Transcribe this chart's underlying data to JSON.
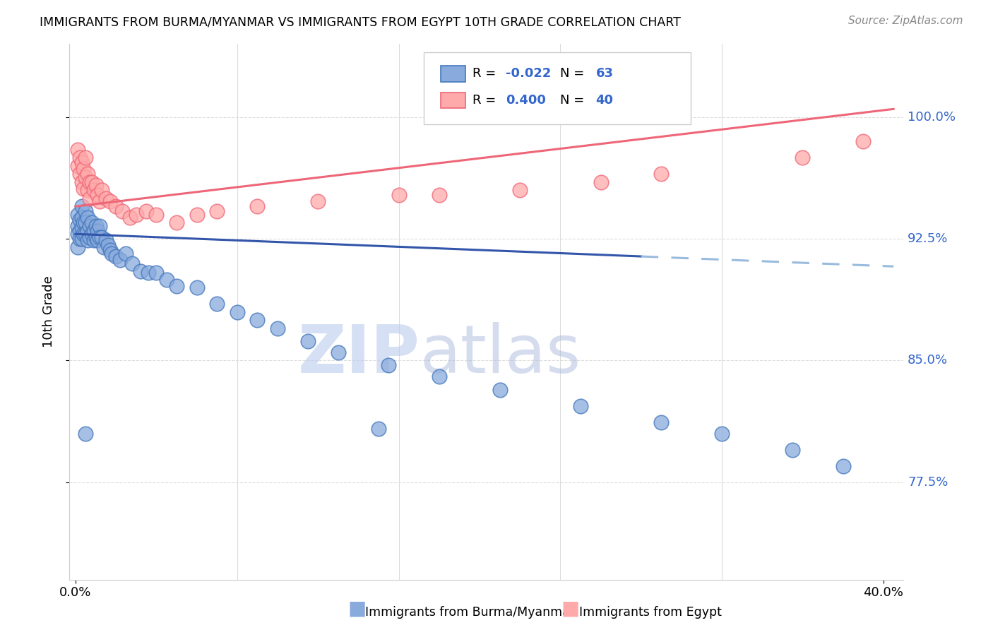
{
  "title": "IMMIGRANTS FROM BURMA/MYANMAR VS IMMIGRANTS FROM EGYPT 10TH GRADE CORRELATION CHART",
  "source": "Source: ZipAtlas.com",
  "ylabel": "10th Grade",
  "ytick_labels": [
    "77.5%",
    "85.0%",
    "92.5%",
    "100.0%"
  ],
  "ytick_values": [
    0.775,
    0.85,
    0.925,
    1.0
  ],
  "xlim": [
    -0.003,
    0.41
  ],
  "ylim": [
    0.715,
    1.045
  ],
  "legend_R_blue": "-0.022",
  "legend_N_blue": "63",
  "legend_R_pink": "0.400",
  "legend_N_pink": "40",
  "blue_scatter_color": "#88AADD",
  "blue_edge_color": "#4477BB",
  "pink_scatter_color": "#FFAAAA",
  "pink_edge_color": "#EE6677",
  "trendline_blue_solid_color": "#3355AA",
  "trendline_blue_dashed_color": "#99BBDD",
  "trendline_pink_color": "#EE6677",
  "grid_color": "#DDDDDD",
  "background_color": "#FFFFFF",
  "watermark_color": "#DDEEFF",
  "blue_x": [
    0.001,
    0.001,
    0.001,
    0.001,
    0.002,
    0.002,
    0.002,
    0.003,
    0.003,
    0.003,
    0.003,
    0.004,
    0.004,
    0.005,
    0.005,
    0.005,
    0.006,
    0.006,
    0.006,
    0.007,
    0.007,
    0.008,
    0.008,
    0.009,
    0.009,
    0.01,
    0.01,
    0.011,
    0.011,
    0.012,
    0.012,
    0.013,
    0.014,
    0.015,
    0.016,
    0.017,
    0.018,
    0.02,
    0.022,
    0.025,
    0.028,
    0.032,
    0.036,
    0.04,
    0.045,
    0.05,
    0.06,
    0.07,
    0.08,
    0.09,
    0.1,
    0.115,
    0.13,
    0.155,
    0.18,
    0.21,
    0.25,
    0.29,
    0.32,
    0.355,
    0.38,
    0.005,
    0.15
  ],
  "blue_y": [
    0.94,
    0.933,
    0.928,
    0.92,
    0.937,
    0.93,
    0.925,
    0.945,
    0.938,
    0.932,
    0.925,
    0.935,
    0.928,
    0.942,
    0.935,
    0.928,
    0.938,
    0.93,
    0.924,
    0.933,
    0.926,
    0.935,
    0.928,
    0.93,
    0.924,
    0.933,
    0.926,
    0.93,
    0.924,
    0.933,
    0.926,
    0.926,
    0.92,
    0.924,
    0.921,
    0.918,
    0.916,
    0.914,
    0.912,
    0.916,
    0.91,
    0.905,
    0.904,
    0.904,
    0.9,
    0.896,
    0.895,
    0.885,
    0.88,
    0.875,
    0.87,
    0.862,
    0.855,
    0.847,
    0.84,
    0.832,
    0.822,
    0.812,
    0.805,
    0.795,
    0.785,
    0.805,
    0.808
  ],
  "pink_x": [
    0.001,
    0.001,
    0.002,
    0.002,
    0.003,
    0.003,
    0.004,
    0.004,
    0.005,
    0.005,
    0.006,
    0.006,
    0.007,
    0.007,
    0.008,
    0.009,
    0.01,
    0.011,
    0.012,
    0.013,
    0.015,
    0.017,
    0.02,
    0.023,
    0.027,
    0.03,
    0.035,
    0.04,
    0.05,
    0.06,
    0.07,
    0.09,
    0.12,
    0.16,
    0.22,
    0.29,
    0.36,
    0.39,
    0.26,
    0.18
  ],
  "pink_y": [
    0.98,
    0.97,
    0.975,
    0.965,
    0.972,
    0.96,
    0.968,
    0.956,
    0.975,
    0.963,
    0.965,
    0.955,
    0.96,
    0.95,
    0.96,
    0.955,
    0.958,
    0.952,
    0.948,
    0.955,
    0.95,
    0.948,
    0.945,
    0.942,
    0.938,
    0.94,
    0.942,
    0.94,
    0.935,
    0.94,
    0.942,
    0.945,
    0.948,
    0.952,
    0.955,
    0.965,
    0.975,
    0.985,
    0.96,
    0.952
  ],
  "blue_trend_x0": 0.0,
  "blue_trend_x_solid_end": 0.28,
  "blue_trend_x1": 0.405,
  "blue_trend_y0": 0.928,
  "blue_trend_y1": 0.908,
  "pink_trend_x0": 0.0,
  "pink_trend_x1": 0.405,
  "pink_trend_y0": 0.945,
  "pink_trend_y1": 1.005
}
